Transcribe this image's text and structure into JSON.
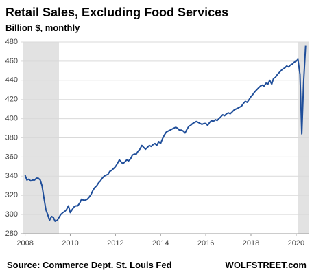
{
  "chart_data": {
    "type": "line",
    "title": "Retail Sales, Excluding Food Services",
    "subtitle": "Billion $, monthly",
    "source": "Source: Commerce Dept. St. Louis Fed",
    "brand": "WOLFSTREET.com",
    "x": [
      2008.0,
      2008.08,
      2008.17,
      2008.25,
      2008.33,
      2008.42,
      2008.5,
      2008.58,
      2008.67,
      2008.75,
      2008.83,
      2008.92,
      2009.0,
      2009.08,
      2009.17,
      2009.25,
      2009.33,
      2009.42,
      2009.5,
      2009.58,
      2009.67,
      2009.75,
      2009.83,
      2009.92,
      2010.0,
      2010.08,
      2010.17,
      2010.25,
      2010.33,
      2010.42,
      2010.5,
      2010.58,
      2010.67,
      2010.75,
      2010.83,
      2010.92,
      2011.0,
      2011.08,
      2011.17,
      2011.25,
      2011.33,
      2011.42,
      2011.5,
      2011.58,
      2011.67,
      2011.75,
      2011.83,
      2011.92,
      2012.0,
      2012.08,
      2012.17,
      2012.25,
      2012.33,
      2012.42,
      2012.5,
      2012.58,
      2012.67,
      2012.75,
      2012.83,
      2012.92,
      2013.0,
      2013.08,
      2013.17,
      2013.25,
      2013.33,
      2013.42,
      2013.5,
      2013.58,
      2013.67,
      2013.75,
      2013.83,
      2013.92,
      2014.0,
      2014.08,
      2014.17,
      2014.25,
      2014.33,
      2014.42,
      2014.5,
      2014.58,
      2014.67,
      2014.75,
      2014.83,
      2014.92,
      2015.0,
      2015.08,
      2015.17,
      2015.25,
      2015.33,
      2015.42,
      2015.5,
      2015.58,
      2015.67,
      2015.75,
      2015.83,
      2015.92,
      2016.0,
      2016.08,
      2016.17,
      2016.25,
      2016.33,
      2016.42,
      2016.5,
      2016.58,
      2016.67,
      2016.75,
      2016.83,
      2016.92,
      2017.0,
      2017.08,
      2017.17,
      2017.25,
      2017.33,
      2017.42,
      2017.5,
      2017.58,
      2017.67,
      2017.75,
      2017.83,
      2017.92,
      2018.0,
      2018.08,
      2018.17,
      2018.25,
      2018.33,
      2018.42,
      2018.5,
      2018.58,
      2018.67,
      2018.75,
      2018.83,
      2018.92,
      2019.0,
      2019.08,
      2019.17,
      2019.25,
      2019.33,
      2019.42,
      2019.5,
      2019.58,
      2019.67,
      2019.75,
      2019.83,
      2019.92,
      2020.0,
      2020.08,
      2020.17,
      2020.25,
      2020.33,
      2020.42
    ],
    "series": [
      {
        "name": "Retail sales",
        "color": "#1f4e9a",
        "values": [
          341,
          336,
          337,
          335,
          336,
          336,
          338,
          338,
          336,
          330,
          318,
          305,
          300,
          294,
          298,
          297,
          293,
          294,
          297,
          300,
          302,
          303,
          305,
          309,
          302,
          305,
          308,
          309,
          309,
          312,
          316,
          315,
          315,
          316,
          318,
          321,
          325,
          328,
          330,
          333,
          335,
          338,
          340,
          341,
          342,
          345,
          346,
          348,
          350,
          353,
          357,
          355,
          353,
          355,
          357,
          356,
          358,
          362,
          363,
          363,
          366,
          368,
          372,
          370,
          368,
          370,
          372,
          371,
          373,
          374,
          372,
          376,
          374,
          379,
          383,
          386,
          387,
          388,
          389,
          390,
          391,
          390,
          388,
          388,
          387,
          385,
          389,
          392,
          393,
          395,
          396,
          397,
          396,
          395,
          394,
          395,
          395,
          393,
          396,
          398,
          397,
          399,
          398,
          400,
          402,
          404,
          403,
          405,
          406,
          405,
          407,
          409,
          410,
          411,
          412,
          413,
          416,
          418,
          417,
          420,
          423,
          425,
          428,
          430,
          432,
          434,
          435,
          434,
          437,
          436,
          440,
          436,
          442,
          443,
          446,
          448,
          450,
          452,
          453,
          455,
          454,
          456,
          457,
          459,
          460,
          462,
          446,
          384,
          438,
          476
        ]
      }
    ],
    "recessions": [
      [
        2007.92,
        2009.5
      ],
      [
        2020.08,
        2020.55
      ]
    ],
    "recession_color": "#e2e2e2",
    "xlim": [
      2007.8,
      2020.55
    ],
    "xticks": [
      2008,
      2010,
      2012,
      2014,
      2016,
      2018,
      2020
    ],
    "ylim": [
      280,
      480
    ],
    "yticks": [
      280,
      300,
      320,
      340,
      360,
      380,
      400,
      420,
      440,
      460,
      480
    ],
    "grid": true
  }
}
